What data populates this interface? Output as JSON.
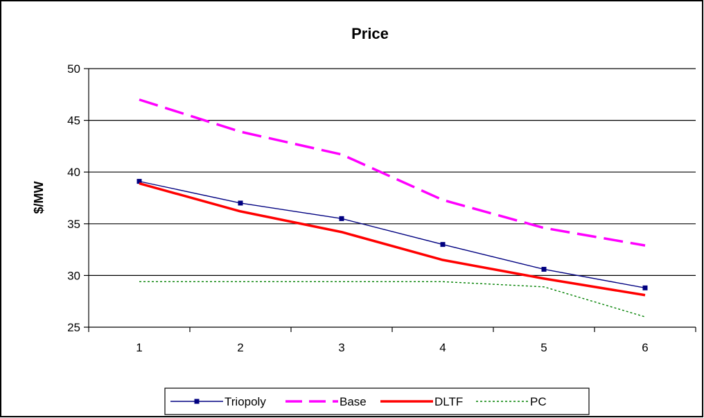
{
  "chart_data": {
    "type": "line",
    "title": "Price",
    "xlabel": "",
    "ylabel": "$/MW",
    "categories": [
      "1",
      "2",
      "3",
      "4",
      "5",
      "6"
    ],
    "ylim": [
      25,
      50
    ],
    "yticks": [
      "25",
      "30",
      "35",
      "40",
      "45",
      "50"
    ],
    "grid": true,
    "legend_position": "bottom",
    "series": [
      {
        "name": "Triopoly",
        "values": [
          39.1,
          37.0,
          35.5,
          33.0,
          30.6,
          28.8
        ],
        "color": "#000080",
        "style": "solid-marker"
      },
      {
        "name": "Base",
        "values": [
          47.0,
          43.9,
          41.7,
          37.3,
          34.6,
          32.9
        ],
        "color": "#ff00ff",
        "style": "dashed"
      },
      {
        "name": "DLTF",
        "values": [
          38.9,
          36.2,
          34.2,
          31.5,
          29.7,
          28.1
        ],
        "color": "#ff0000",
        "style": "thick"
      },
      {
        "name": "PC",
        "values": [
          29.4,
          29.4,
          29.4,
          29.4,
          28.9,
          26.0
        ],
        "color": "#008000",
        "style": "dotted"
      }
    ]
  }
}
